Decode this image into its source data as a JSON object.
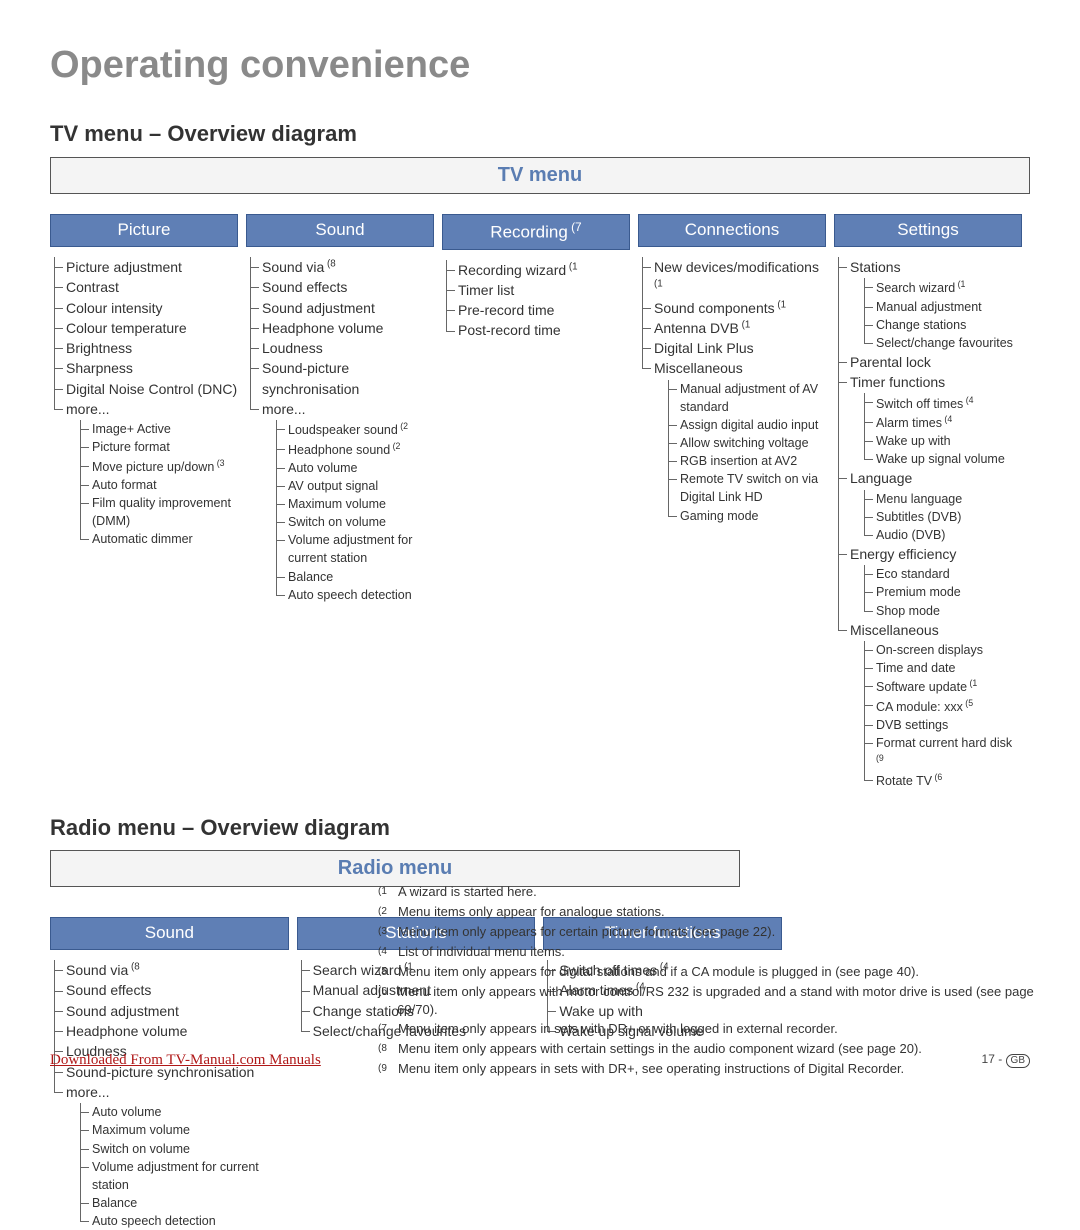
{
  "page_title": "Operating convenience",
  "tv_section_title": "TV menu – Overview diagram",
  "radio_section_title": "Radio menu – Overview diagram",
  "tv_root": "TV menu",
  "radio_root": "Radio menu",
  "colors": {
    "title_gray": "#8a8a8a",
    "cat_bg": "#5f7fb5",
    "cat_text": "#ffffff",
    "root_text": "#5a7db2",
    "tree_line": "#666666",
    "download_red": "#b01818",
    "body_text": "#333333"
  },
  "tv_cols": [
    {
      "header": "Picture",
      "items": [
        {
          "t": "Picture adjustment"
        },
        {
          "t": "Contrast"
        },
        {
          "t": "Colour intensity"
        },
        {
          "t": "Colour temperature"
        },
        {
          "t": "Brightness"
        },
        {
          "t": "Sharpness"
        },
        {
          "t": "Digital Noise Control (DNC)"
        },
        {
          "t": "more...",
          "sub": [
            {
              "t": "Image+ Active"
            },
            {
              "t": "Picture format"
            },
            {
              "t": "Move picture up/down",
              "fn": "3"
            },
            {
              "t": "Auto format"
            },
            {
              "t": "Film quality improvement (DMM)"
            },
            {
              "t": "Automatic dimmer"
            }
          ]
        }
      ]
    },
    {
      "header": "Sound",
      "items": [
        {
          "t": "Sound via",
          "fn": "8"
        },
        {
          "t": "Sound effects"
        },
        {
          "t": "Sound adjustment"
        },
        {
          "t": "Headphone volume"
        },
        {
          "t": "Loudness"
        },
        {
          "t": "Sound-picture synchronisation"
        },
        {
          "t": "more...",
          "sub": [
            {
              "t": "Loudspeaker sound",
              "fn": "2"
            },
            {
              "t": "Headphone sound",
              "fn": "2"
            },
            {
              "t": "Auto volume"
            },
            {
              "t": "AV output signal"
            },
            {
              "t": "Maximum volume"
            },
            {
              "t": "Switch on volume"
            },
            {
              "t": "Volume adjustment for current station"
            },
            {
              "t": "Balance"
            },
            {
              "t": "Auto speech detection"
            }
          ]
        }
      ]
    },
    {
      "header": "Recording",
      "header_fn": "7",
      "items": [
        {
          "t": "Recording wizard",
          "fn": "1"
        },
        {
          "t": "Timer list"
        },
        {
          "t": "Pre-record time"
        },
        {
          "t": "Post-record time"
        }
      ]
    },
    {
      "header": "Connections",
      "items": [
        {
          "t": "New devices/modifications",
          "fn": "1"
        },
        {
          "t": "Sound components",
          "fn": "1"
        },
        {
          "t": "Antenna DVB",
          "fn": "1"
        },
        {
          "t": "Digital Link Plus"
        },
        {
          "t": "Miscellaneous",
          "sub": [
            {
              "t": "Manual adjustment of AV standard"
            },
            {
              "t": "Assign digital audio input"
            },
            {
              "t": "Allow switching voltage"
            },
            {
              "t": "RGB insertion at AV2"
            },
            {
              "t": "Remote TV switch on via Digital Link HD"
            },
            {
              "t": "Gaming mode"
            }
          ]
        }
      ]
    },
    {
      "header": "Settings",
      "items": [
        {
          "t": "Stations",
          "sub": [
            {
              "t": "Search wizard",
              "fn": "1"
            },
            {
              "t": "Manual adjustment"
            },
            {
              "t": "Change stations"
            },
            {
              "t": "Select/change favourites"
            }
          ]
        },
        {
          "t": "Parental lock"
        },
        {
          "t": "Timer functions",
          "sub": [
            {
              "t": "Switch off times",
              "fn": "4"
            },
            {
              "t": "Alarm times",
              "fn": "4"
            },
            {
              "t": "Wake up with"
            },
            {
              "t": "Wake up signal volume"
            }
          ]
        },
        {
          "t": "Language",
          "sub": [
            {
              "t": "Menu language"
            },
            {
              "t": "Subtitles (DVB)"
            },
            {
              "t": "Audio (DVB)"
            }
          ]
        },
        {
          "t": "Energy efficiency",
          "sub": [
            {
              "t": "Eco standard"
            },
            {
              "t": "Premium mode"
            },
            {
              "t": "Shop mode"
            }
          ]
        },
        {
          "t": "Miscellaneous",
          "sub": [
            {
              "t": "On-screen displays"
            },
            {
              "t": "Time and date"
            },
            {
              "t": "Software update",
              "fn": "1"
            },
            {
              "t": "CA module: xxx",
              "fn": "5"
            },
            {
              "t": "DVB settings"
            },
            {
              "t": "Format current hard disk",
              "fn": "9"
            },
            {
              "t": "Rotate TV",
              "fn": "6"
            }
          ]
        }
      ]
    }
  ],
  "radio_cols": [
    {
      "header": "Sound",
      "items": [
        {
          "t": "Sound via",
          "fn": "8"
        },
        {
          "t": "Sound effects"
        },
        {
          "t": "Sound adjustment"
        },
        {
          "t": "Headphone volume"
        },
        {
          "t": "Loudness"
        },
        {
          "t": "Sound-picture synchronisation"
        },
        {
          "t": "more...",
          "sub": [
            {
              "t": "Auto volume"
            },
            {
              "t": "Maximum volume"
            },
            {
              "t": "Switch on volume"
            },
            {
              "t": "Volume adjustment for current station"
            },
            {
              "t": "Balance"
            },
            {
              "t": "Auto speech detection"
            }
          ]
        }
      ]
    },
    {
      "header": "Stations",
      "items": [
        {
          "t": "Search wizard",
          "fn": "1"
        },
        {
          "t": "Manual adjustment"
        },
        {
          "t": "Change stations"
        },
        {
          "t": "Select/change favourites"
        }
      ]
    },
    {
      "header": "Timer functions",
      "items": [
        {
          "t": "Switch off times",
          "fn": "4"
        },
        {
          "t": "Alarm times",
          "fn": "4"
        },
        {
          "t": "Wake up with"
        },
        {
          "t": "Wake up signal volume"
        }
      ]
    }
  ],
  "footnotes": [
    {
      "n": "1",
      "t": "A wizard is started here."
    },
    {
      "n": "2",
      "t": "Menu items only appear for analogue stations."
    },
    {
      "n": "3",
      "t": "Menu item only appears for certain picture formats (see page 22)."
    },
    {
      "n": "4",
      "t": "List of individual menu items."
    },
    {
      "n": "5",
      "t": "Menu item only appears for digital stations and if a CA module is plugged in (see page 40)."
    },
    {
      "n": "6",
      "t": "Menu item only appears with motor control/RS 232 is upgraded and a stand with motor drive is used (see page 69/70)."
    },
    {
      "n": "7",
      "t": "Menu item only appears in sets with DR+ or with logged in external recorder."
    },
    {
      "n": "8",
      "t": "Menu item only appears with certain settings in the audio component wizard (see page 20)."
    },
    {
      "n": "9",
      "t": "Menu item only appears in sets with DR+, see operating instructions of Digital Recorder."
    }
  ],
  "download_text": "Downloaded From TV-Manual.com Manuals",
  "page_number_prefix": "17 - ",
  "page_number_gb": "GB"
}
